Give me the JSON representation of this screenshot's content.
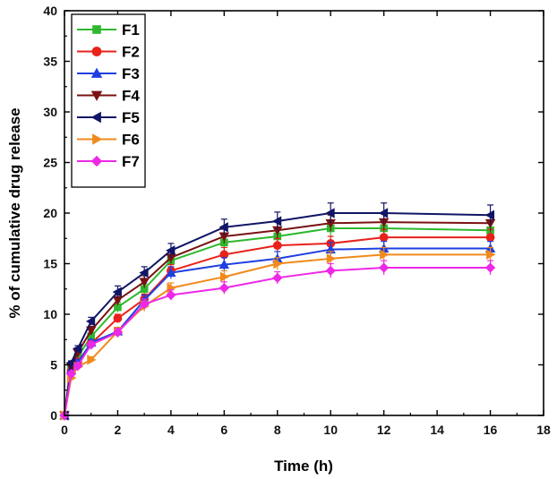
{
  "chart_data": {
    "type": "line",
    "title": "",
    "xlabel": "Time (h)",
    "ylabel": "% of cumulative drug release",
    "xlim": [
      0,
      18
    ],
    "ylim": [
      0,
      40
    ],
    "xticks": [
      0,
      2,
      4,
      6,
      8,
      10,
      12,
      14,
      16,
      18
    ],
    "yticks": [
      0,
      5,
      10,
      15,
      20,
      25,
      30,
      35,
      40
    ],
    "grid": false,
    "legend_position": "top-left",
    "x": [
      0,
      0.25,
      0.5,
      1,
      2,
      3,
      4,
      6,
      8,
      10,
      12,
      16
    ],
    "series": [
      {
        "name": "F1",
        "color": "#2db82d",
        "marker": "square",
        "values": [
          0,
          4.6,
          5.8,
          7.8,
          10.7,
          12.5,
          15.3,
          17.1,
          17.7,
          18.5,
          18.5,
          18.3
        ],
        "errors": [
          0,
          0.2,
          0.3,
          0.4,
          0.5,
          0.5,
          0.6,
          0.7,
          0.7,
          0.8,
          0.8,
          0.8
        ]
      },
      {
        "name": "F2",
        "color": "#e8211b",
        "marker": "circle",
        "values": [
          0,
          4.4,
          5.3,
          7.1,
          9.6,
          11.5,
          14.3,
          15.9,
          16.8,
          17.0,
          17.6,
          17.6
        ],
        "errors": [
          0,
          0.2,
          0.3,
          0.3,
          0.4,
          0.5,
          0.6,
          0.7,
          0.7,
          0.7,
          0.8,
          0.8
        ]
      },
      {
        "name": "F3",
        "color": "#1f3fe0",
        "marker": "triangle-up",
        "values": [
          0,
          4.5,
          5.2,
          7.2,
          8.3,
          11.4,
          14.1,
          14.9,
          15.5,
          16.4,
          16.5,
          16.5
        ],
        "errors": [
          0,
          0.2,
          0.3,
          0.3,
          0.4,
          0.5,
          0.6,
          0.7,
          0.7,
          0.7,
          0.7,
          0.7
        ]
      },
      {
        "name": "F4",
        "color": "#7a1212",
        "marker": "triangle-down",
        "values": [
          0,
          4.8,
          6.2,
          8.4,
          11.4,
          13.2,
          15.6,
          17.7,
          18.3,
          19.0,
          19.1,
          19.0
        ],
        "errors": [
          0,
          0.2,
          0.3,
          0.4,
          0.5,
          0.6,
          0.6,
          0.7,
          0.8,
          0.8,
          0.8,
          0.8
        ]
      },
      {
        "name": "F5",
        "color": "#101566",
        "marker": "triangle-left",
        "values": [
          0,
          5.2,
          6.6,
          9.3,
          12.2,
          14.1,
          16.3,
          18.6,
          19.2,
          20.0,
          20.0,
          19.8
        ],
        "errors": [
          0,
          0.2,
          0.3,
          0.4,
          0.6,
          0.6,
          0.7,
          0.8,
          0.9,
          1.0,
          1.0,
          1.0
        ]
      },
      {
        "name": "F6",
        "color": "#f08a1c",
        "marker": "triangle-right",
        "values": [
          0,
          3.7,
          4.8,
          5.5,
          8.3,
          10.8,
          12.6,
          13.7,
          15.0,
          15.5,
          15.9,
          15.9
        ],
        "errors": [
          0,
          0.2,
          0.2,
          0.3,
          0.4,
          0.5,
          0.5,
          0.6,
          0.6,
          0.7,
          0.7,
          0.7
        ]
      },
      {
        "name": "F7",
        "color": "#ee28e6",
        "marker": "diamond",
        "values": [
          0,
          4.1,
          4.9,
          7.0,
          8.2,
          11.0,
          11.9,
          12.6,
          13.6,
          14.3,
          14.6,
          14.6
        ],
        "errors": [
          0,
          0.2,
          0.2,
          0.3,
          0.4,
          0.5,
          0.5,
          0.6,
          0.6,
          0.7,
          0.7,
          0.7
        ]
      }
    ]
  }
}
